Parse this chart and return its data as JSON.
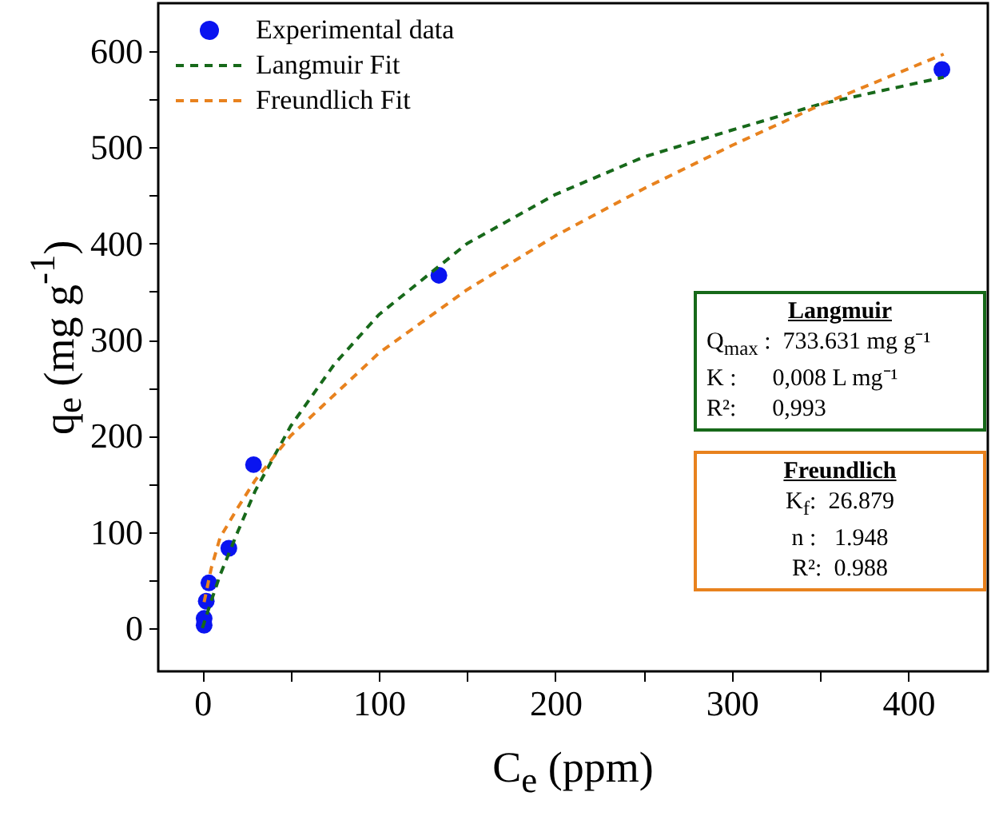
{
  "chart_data": {
    "type": "scatter",
    "xlabel": "C$_{e}$ (ppm)",
    "ylabel": "q$_{e}$ (mg g$^{-1}$)",
    "xlim": [
      -25,
      445
    ],
    "ylim": [
      -45,
      650
    ],
    "xticks": [
      0,
      {
        "value": 50,
        "label": null
      },
      100,
      {
        "value": 150,
        "label": null
      },
      200,
      {
        "value": 250,
        "label": null
      },
      300,
      {
        "value": 350,
        "label": null
      },
      400
    ],
    "yticks": [
      0,
      {
        "value": 50,
        "label": null
      },
      100,
      {
        "value": 150,
        "label": null
      },
      200,
      {
        "value": 250,
        "label": null
      },
      300,
      {
        "value": 350,
        "label": null
      },
      400,
      {
        "value": 450,
        "label": null
      },
      500,
      {
        "value": 550,
        "label": null
      },
      600
    ],
    "legend": "top left",
    "grid": false,
    "series": [
      {
        "name": "Experimental data",
        "type": "scatter",
        "marker": "circle",
        "color": "#0a14f0",
        "x": [
          1,
          1,
          2.2,
          3.7,
          15,
          29,
          134,
          419
        ],
        "values": [
          3,
          10,
          28,
          47,
          83,
          170,
          367,
          581
        ]
      },
      {
        "name": "Langmuir Fit",
        "type": "line",
        "line_style": "dashed",
        "color": "#17691a",
        "x": [
          0,
          5,
          10,
          20,
          30,
          50,
          75,
          100,
          150,
          200,
          250,
          300,
          350,
          420
        ],
        "values": [
          0,
          28,
          55,
          100,
          143,
          210,
          275,
          326,
          400,
          451,
          490,
          518,
          545,
          573
        ]
      },
      {
        "name": "Freundlich Fit",
        "type": "line",
        "line_style": "dashed",
        "color": "#e8821e",
        "x": [
          1,
          5,
          10,
          20,
          30,
          50,
          100,
          150,
          200,
          250,
          300,
          350,
          420
        ],
        "values": [
          27,
          62,
          94,
          125,
          154,
          200,
          286,
          352,
          408,
          457,
          502,
          544,
          597
        ]
      }
    ],
    "annotations": [
      "Langmuir",
      "Q$_{max}$ :  733.631 mg g⁻¹",
      "K :      0,008 L mg⁻¹",
      "R²:      0,993",
      "Freundlich",
      "K$_{f}$:  26.879",
      "n :   1.948",
      "R²:  0.988"
    ]
  }
}
